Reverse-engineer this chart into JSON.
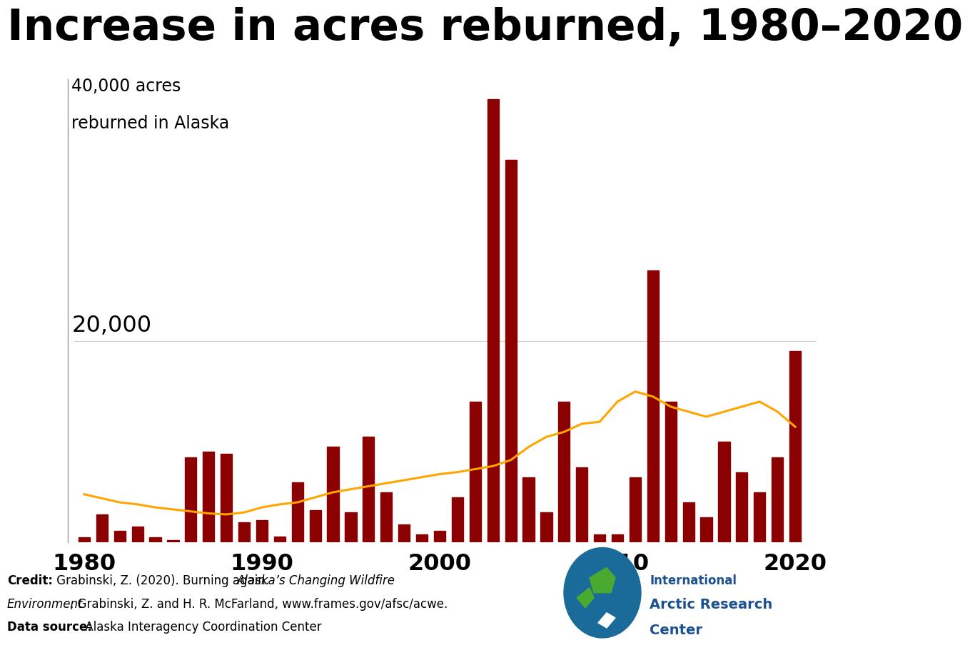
{
  "title": "Increase in acres reburned, 1980–2020",
  "bar_color": "#8B0000",
  "line_color": "#FFA500",
  "background_color": "#FFFFFF",
  "years": [
    1980,
    1981,
    1982,
    1983,
    1984,
    1985,
    1986,
    1987,
    1988,
    1989,
    1990,
    1991,
    1992,
    1993,
    1994,
    1995,
    1996,
    1997,
    1998,
    1999,
    2000,
    2001,
    2002,
    2003,
    2004,
    2005,
    2006,
    2007,
    2008,
    2009,
    2010,
    2011,
    2012,
    2013,
    2014,
    2015,
    2016,
    2017,
    2018,
    2019,
    2020
  ],
  "bar_values": [
    500,
    2800,
    1200,
    1600,
    500,
    250,
    8500,
    9000,
    8800,
    2000,
    2200,
    600,
    6000,
    3200,
    9500,
    3000,
    10500,
    5000,
    1800,
    800,
    1200,
    4500,
    14000,
    44000,
    38000,
    6500,
    3000,
    14000,
    7500,
    800,
    800,
    6500,
    27000,
    14000,
    4000,
    2500,
    10000,
    7000,
    5000,
    8500,
    19000
  ],
  "line_values": [
    4800,
    4400,
    4000,
    3800,
    3500,
    3300,
    3100,
    2900,
    2800,
    3000,
    3500,
    3800,
    4000,
    4500,
    5000,
    5300,
    5600,
    5900,
    6200,
    6500,
    6800,
    7000,
    7300,
    7600,
    8200,
    9500,
    10500,
    11000,
    11800,
    12000,
    14000,
    15000,
    14500,
    13500,
    13000,
    12500,
    13000,
    13500,
    14000,
    13000,
    11500
  ],
  "ylim": [
    0,
    46000
  ],
  "xlim_left": 1978.8,
  "xlim_right": 2021.2,
  "xticks": [
    1980,
    1990,
    2000,
    2010,
    2020
  ],
  "bar_width": 0.65,
  "title_fontsize": 44,
  "axis_label_fontsize": 17,
  "tick_fontsize": 23,
  "credit_fontsize": 12,
  "iarc_color": "#1B5093",
  "credit_line1_normal": " Grabinski, Z. (2020). Burning again. ",
  "credit_line1_italic": "Alaska’s Changing Wildfire",
  "credit_line2_italic": "Environment",
  "credit_line2_normal": ", Grabinski, Z. and H. R. McFarland, www.frames.gov/afsc/acwe.",
  "credit_line3_normal": " Alaska Interagency Coordination Center"
}
